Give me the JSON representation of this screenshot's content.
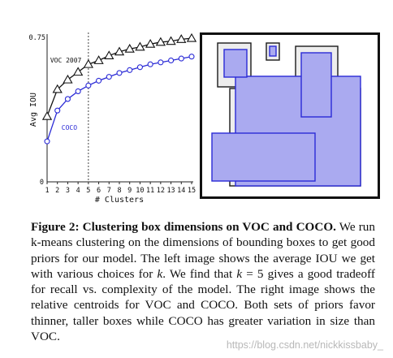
{
  "chart_data": {
    "type": "line",
    "xlabel": "# Clusters",
    "ylabel": "Avg IOU",
    "x": [
      1,
      2,
      3,
      4,
      5,
      6,
      7,
      8,
      9,
      10,
      11,
      12,
      13,
      14,
      15
    ],
    "xlim": [
      1,
      15
    ],
    "ylim": [
      0,
      0.75
    ],
    "yticks": [
      "0",
      "0.75"
    ],
    "xticks": [
      "1",
      "2",
      "3",
      "4",
      "5",
      "6",
      "7",
      "8",
      "9",
      "10",
      "11",
      "12",
      "13",
      "14",
      "15"
    ],
    "grid": false,
    "reference_line_x": 5,
    "series": [
      {
        "name": "VOC 2007",
        "marker": "triangle",
        "color": "#111111",
        "values": [
          0.34,
          0.48,
          0.53,
          0.57,
          0.61,
          0.63,
          0.655,
          0.675,
          0.69,
          0.7,
          0.715,
          0.725,
          0.73,
          0.74,
          0.745
        ]
      },
      {
        "name": "COCO",
        "marker": "circle",
        "color": "#2a2ad6",
        "values": [
          0.21,
          0.37,
          0.43,
          0.47,
          0.5,
          0.525,
          0.545,
          0.565,
          0.58,
          0.595,
          0.61,
          0.62,
          0.63,
          0.64,
          0.65
        ]
      }
    ]
  },
  "caption": {
    "label": "Figure 2:",
    "title": "Clustering box dimensions on VOC and COCO.",
    "t1": " We run k-means clustering on the dimensions of bounding boxes to get good priors for our model. The left image shows the average IOU we get with various choices for ",
    "k1": "k",
    "t2": ". We find that ",
    "k2": "k",
    "eq": " = 5",
    "t3": " gives a good tradeoff for recall vs.  complexity of the model.  The right image shows the relative centroids for VOC and COCO. Both sets of priors favor thinner, taller boxes while COCO has greater variation in size than VOC."
  },
  "watermark": "https://blog.csdn.net/nickkissbaby_",
  "colors": {
    "voc_box_fill": "#ededed",
    "voc_box_stroke": "#1a1a1a",
    "coco_box_fill": "#aaaaf0",
    "coco_box_stroke": "#2a2ad6",
    "coco_series": "#2a2ad6"
  }
}
